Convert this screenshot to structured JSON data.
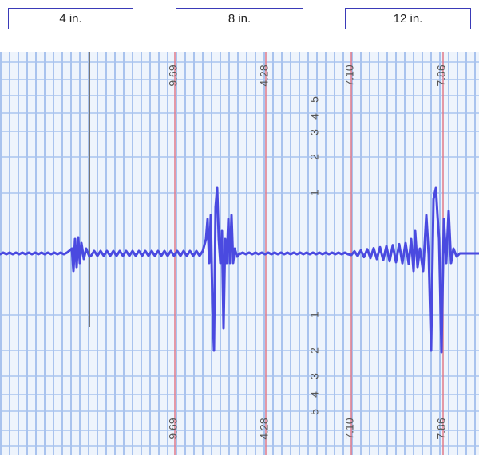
{
  "tabs": [
    "4 in.",
    "8 in.",
    "12 in."
  ],
  "markers": [
    "9.69",
    "4.28",
    "7.10",
    "7.86"
  ],
  "upper_scale": [
    "5",
    "4",
    "3",
    "2",
    "1"
  ],
  "lower_scale": [
    "1",
    "2",
    "3",
    "4",
    "5"
  ]
}
